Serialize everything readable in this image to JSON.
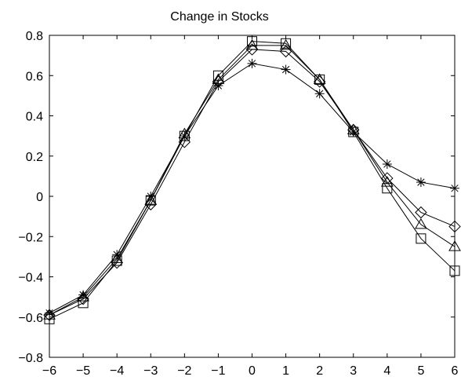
{
  "chart_data": {
    "type": "line",
    "title": "Change in Stocks",
    "xlabel": "",
    "ylabel": "",
    "xlim": [
      -6,
      6
    ],
    "ylim": [
      -0.8,
      0.8
    ],
    "grid": false,
    "line_color": "#000000",
    "x_ticks": [
      -6,
      -5,
      -4,
      -3,
      -2,
      -1,
      0,
      1,
      2,
      3,
      4,
      5,
      6
    ],
    "x_tick_labels": [
      "−6",
      "−5",
      "−4",
      "−3",
      "−2",
      "−1",
      "0",
      "1",
      "2",
      "3",
      "4",
      "5",
      "6"
    ],
    "y_ticks": [
      0.8,
      0.6,
      0.4,
      0.2,
      0,
      -0.2,
      -0.4,
      -0.6,
      -0.8
    ],
    "y_tick_labels": [
      "0.8",
      "0.6",
      "0.4",
      "0.2",
      "0",
      "−0.2",
      "−0.4",
      "−0.6",
      "−0.8"
    ],
    "x": [
      -6,
      -5,
      -4,
      -3,
      -2,
      -1,
      0,
      1,
      2,
      3,
      4,
      5,
      6
    ],
    "series": [
      {
        "marker": "asterisk",
        "values": [
          -0.58,
          -0.49,
          -0.29,
          0.0,
          0.3,
          0.55,
          0.66,
          0.63,
          0.51,
          0.32,
          0.16,
          0.07,
          0.04
        ]
      },
      {
        "marker": "diamond",
        "values": [
          -0.59,
          -0.51,
          -0.33,
          -0.04,
          0.27,
          0.57,
          0.73,
          0.72,
          0.57,
          0.33,
          0.09,
          -0.08,
          -0.15
        ]
      },
      {
        "marker": "square",
        "values": [
          -0.61,
          -0.53,
          -0.32,
          -0.02,
          0.3,
          0.6,
          0.77,
          0.76,
          0.58,
          0.32,
          0.04,
          -0.21,
          -0.37
        ]
      },
      {
        "marker": "triangle",
        "values": [
          -0.59,
          -0.5,
          -0.31,
          -0.02,
          0.31,
          0.58,
          0.75,
          0.75,
          0.58,
          0.33,
          0.07,
          -0.14,
          -0.25
        ]
      }
    ]
  }
}
